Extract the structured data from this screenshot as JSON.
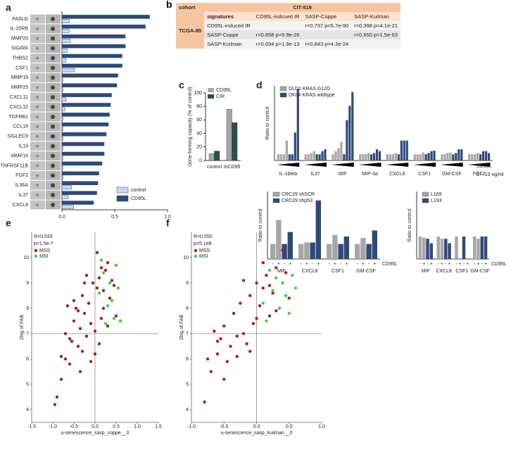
{
  "chart_data": [
    {
      "type": "hbar",
      "panel": "a",
      "categories": [
        "FASLG",
        "IL-20RB",
        "MMP20",
        "SIGIRR",
        "THBS2",
        "CSF1",
        "MMP19",
        "MMP25",
        "CXCL11",
        "CXCL12",
        "TGFRB1",
        "CCL18",
        "SIGLEC9",
        "IL19",
        "MMP16",
        "TNFRSF11B",
        "FGF2",
        "IL36A",
        "IL37",
        "CXCL8"
      ],
      "series": [
        {
          "name": "control",
          "color": "#c9d8ef",
          "values": [
            0.07,
            0.07,
            0.08,
            0.05,
            0.04,
            0.12,
            0.01,
            0.01,
            0.04,
            0.03,
            0.01,
            0.01,
            0.01,
            0.01,
            0.01,
            0.01,
            0.01,
            0.09,
            0.06,
            0.11
          ]
        },
        {
          "name": "CD95L",
          "color": "#2d4a78",
          "values": [
            0.83,
            0.79,
            0.6,
            0.6,
            0.57,
            0.57,
            0.53,
            0.52,
            0.47,
            0.46,
            0.45,
            0.44,
            0.42,
            0.4,
            0.4,
            0.38,
            0.35,
            0.34,
            0.33,
            0.3
          ]
        }
      ],
      "xlim": [
        0,
        1
      ],
      "xticks": [
        {
          "value": 0,
          "label": "0.0"
        },
        0.5,
        {
          "value": 1,
          "label": "1.0"
        }
      ],
      "legend": "lower right"
    },
    {
      "type": "bar",
      "panel": "c",
      "ylabel": "clone-forming capacity (% of control)",
      "categories": [
        "control",
        "mCD95"
      ],
      "series": [
        {
          "name": "CD95L",
          "color": "#a6a6a6",
          "values": [
            10,
            76
          ]
        },
        {
          "name": "CIR",
          "color": "#2b4f4b",
          "values": [
            14,
            56
          ]
        }
      ],
      "ylim": [
        0,
        100
      ],
      "yticks": [
        0,
        20,
        40,
        60,
        80,
        100
      ],
      "legend": "upper left"
    },
    {
      "type": "groupbar",
      "panel": "d",
      "ylabel": "Ratio to control",
      "groups": [
        "IL-1beta",
        "IL37",
        "MIF",
        "MIP-3a",
        "CXCL8",
        "CSF1",
        "GM-CSF",
        "FGF2"
      ],
      "series": [
        {
          "name": "DLD1 KRAS G12D",
          "color": "#a6a6a6",
          "values": [
            [
              1,
              1,
              1,
              3.2
            ],
            [
              1,
              1,
              1.2,
              1.5
            ],
            [
              1,
              1.5,
              2,
              3
            ],
            [
              1,
              1,
              1,
              1.2
            ],
            [
              1,
              1,
              1,
              1.2
            ],
            [
              1,
              1,
              1,
              1.3
            ],
            [
              1,
              1,
              1.2,
              1.3
            ],
            [
              1,
              1,
              1,
              1.2
            ]
          ]
        },
        {
          "name": "DK04 KRAS wildtype",
          "color": "#2f4a7a",
          "values": [
            [
              1,
              1,
              4.5,
              11.5
            ],
            [
              1,
              1,
              1.5,
              1.8
            ],
            [
              1,
              6.5,
              8.8,
              11
            ],
            [
              1,
              1.2,
              1.8,
              1.5
            ],
            [
              1,
              3.2,
              3.2,
              3.2
            ],
            [
              1,
              1.2,
              1.5,
              1.6
            ],
            [
              1,
              1.2,
              1.8,
              1.8
            ],
            [
              1,
              1.5,
              1.5,
              1.2
            ]
          ]
        }
      ],
      "ylim": [
        0,
        12
      ],
      "dose_label": "CD95L",
      "dose_range": "0 – 10 ng/ml",
      "legend": "upper left"
    },
    {
      "type": "groupbar",
      "ylabel": "Ratio to control",
      "groups": [
        "MIF",
        "CXCL8",
        "CSF1",
        "GM-CSF"
      ],
      "series": [
        {
          "name": "CRC29 shSCR",
          "color": "#a6a6a6",
          "values": [
            [
              1,
              2.6
            ],
            [
              1,
              1.1
            ],
            [
              1,
              1.6
            ],
            [
              1,
              1.4
            ]
          ]
        },
        {
          "name": "CRC29 shp53",
          "color": "#2f4a7a",
          "values": [
            [
              1,
              1.8
            ],
            [
              1.1,
              3.9
            ],
            [
              1,
              1.5
            ],
            [
              1,
              1.9
            ]
          ]
        }
      ],
      "dose_labels": [
        "-",
        "+"
      ],
      "dose_label": "CD95L",
      "ylim": [
        0,
        4.5
      ],
      "legend": "upper left"
    },
    {
      "type": "groupbar",
      "ylabel": "Ratio to control",
      "groups": [
        "MIF",
        "CXCL8",
        "CSF1",
        "GM-CSF"
      ],
      "series": [
        {
          "name": "L169",
          "color": "#a6a6a6",
          "values": [
            [
              1,
              0.95
            ],
            [
              1,
              0.9
            ],
            [
              1,
              null
            ],
            [
              1,
              0.9
            ]
          ]
        },
        {
          "name": "L193",
          "color": "#2f4a7a",
          "values": [
            [
              0.9,
              0.7
            ],
            [
              0.9,
              0.7
            ],
            [
              1,
              null
            ],
            [
              1,
              1
            ]
          ]
        }
      ],
      "dose_labels": [
        "-",
        "+"
      ],
      "dose_label": "CD95L",
      "ylim": [
        0,
        3
      ],
      "legend": "upper left"
    },
    {
      "type": "scatter",
      "panel": "e",
      "annotations": [
        "R=0.533",
        "p=1.5e-7"
      ],
      "xlabel": "u-senescence_sasp_coppe__0",
      "ylabel": "2log of FAB",
      "series": [
        {
          "name": "MSS",
          "color": "#b01c1c",
          "x": [
            -0.9,
            -0.8,
            -0.7,
            -0.6,
            -0.5,
            -0.45,
            -0.4,
            -0.35,
            -0.3,
            -0.25,
            -0.2,
            -0.15,
            -0.1,
            -0.05,
            0,
            0.05,
            0.1,
            0.15,
            0.2,
            0.25,
            0.3,
            0.35,
            0.4,
            0.5,
            -0.6,
            -0.5,
            -0.4,
            -0.3,
            -0.2,
            -0.1,
            0,
            0.1,
            0.2,
            0.3,
            -0.8,
            -0.7,
            -0.95,
            -0.55,
            -0.25,
            0.15,
            0.45,
            0.6,
            -0.35,
            -0.65,
            0.05
          ],
          "y": [
            4.5,
            5.2,
            6.0,
            6.8,
            7.5,
            8.0,
            6.5,
            7.2,
            8.5,
            7.8,
            6.9,
            8.2,
            7.4,
            9.0,
            6.2,
            8.8,
            9.2,
            7.6,
            8.0,
            9.5,
            9.8,
            8.4,
            9.1,
            7.7,
            5.8,
            8.3,
            7.9,
            6.3,
            9.3,
            5.9,
            7.1,
            6.6,
            8.7,
            7.3,
            6.1,
            7.0,
            4.2,
            6.7,
            9.0,
            9.6,
            8.9,
            7.5,
            5.5,
            8.1,
            10.2
          ]
        },
        {
          "name": "MSI",
          "color": "#3bd43b",
          "x": [
            0.1,
            0.2,
            0.3,
            0.35,
            0.4,
            0.45,
            0.5,
            0.25,
            0.55,
            0.15,
            0.6
          ],
          "y": [
            8.6,
            9.4,
            8.1,
            9.0,
            8.3,
            7.6,
            9.7,
            7.4,
            8.8,
            9.9,
            7.5
          ]
        }
      ],
      "xlim": [
        -1.5,
        1.5
      ],
      "xticks": [
        {
          "value": -1.5,
          "label": "-1.5"
        },
        {
          "value": -1,
          "label": "-1.0"
        },
        {
          "value": -0.5,
          "label": "-0.5"
        },
        {
          "value": 0,
          "label": "0.0"
        },
        0.5,
        {
          "value": 1,
          "label": "1.0"
        },
        1.5
      ],
      "ylim": [
        3.5,
        11
      ],
      "yticks": [
        4,
        5,
        6,
        7,
        8,
        9,
        10
      ],
      "ref_x": 0,
      "ref_y": 7,
      "legend": "upper left"
    },
    {
      "type": "scatter",
      "panel": "f",
      "annotations": [
        "R=0.550",
        "p=5.1e8"
      ],
      "xlabel": "u-senescence_sasp_kuilman__0",
      "ylabel": "2log of FAB",
      "series": [
        {
          "name": "MSS",
          "color": "#b01c1c",
          "x": [
            -0.8,
            -0.7,
            -0.6,
            -0.55,
            -0.5,
            -0.45,
            -0.4,
            -0.35,
            -0.3,
            -0.25,
            -0.2,
            -0.15,
            -0.1,
            -0.05,
            0,
            0.05,
            0.1,
            0.15,
            0.2,
            0.25,
            0.3,
            0.35,
            0.4,
            0.5,
            -0.65,
            -0.5,
            -0.3,
            -0.2,
            -0.1,
            0,
            0.1,
            0.2,
            0.3,
            0.45,
            -0.75,
            -0.6
          ],
          "y": [
            4.3,
            5.5,
            6.2,
            6.8,
            7.3,
            5.9,
            6.5,
            7.8,
            6.1,
            8.2,
            7.0,
            6.6,
            8.5,
            7.4,
            9.0,
            8.1,
            8.8,
            9.3,
            7.7,
            8.6,
            9.6,
            8.0,
            10.3,
            8.4,
            7.1,
            5.2,
            6.9,
            9.1,
            6.3,
            7.6,
            9.8,
            8.9,
            7.9,
            9.4,
            6.0,
            6.7
          ]
        },
        {
          "name": "MSI",
          "color": "#3bd43b",
          "x": [
            0.1,
            0.2,
            0.25,
            0.3,
            0.35,
            0.4,
            0.45,
            0.5,
            0.55,
            0.6,
            0.15
          ],
          "y": [
            8.2,
            9.5,
            8.7,
            9.2,
            8.0,
            9.0,
            8.5,
            7.8,
            9.3,
            8.8,
            7.5
          ]
        }
      ],
      "xlim": [
        -1,
        1
      ],
      "xticks": [
        {
          "value": -1,
          "label": "-1.0"
        },
        {
          "value": -0.5,
          "label": "-0.5"
        },
        {
          "value": 0,
          "label": "0.0"
        },
        0.5,
        {
          "value": 1,
          "label": "1.0"
        }
      ],
      "ylim": [
        3.5,
        11
      ],
      "yticks": [
        4,
        5,
        6,
        7,
        8,
        9,
        10
      ],
      "ref_x": 0,
      "ref_y": 7,
      "legend": "upper left"
    }
  ],
  "table": {
    "panel": "b",
    "corner": "cohort",
    "cohort_a": "CIT-519",
    "cohort_b": "TCGA-85",
    "header": [
      "signatures",
      "CD95L-indcued IR",
      "SASP-Coppe",
      "SASP-Kuilman"
    ],
    "rows": [
      [
        "CD95L-induced IR",
        null,
        "r=0.737 p=5.7e-90",
        "r=0.398 p=4.1e-21"
      ],
      [
        "SASP-Coppe",
        "r=0.858 p=9.9e-26",
        null,
        "r=0.650 p=1.5e-63"
      ],
      [
        "SASP-Kuilman",
        "r=0.694 p=1.9e-13",
        "r=0.843 p=4.3e-24",
        null
      ]
    ]
  }
}
